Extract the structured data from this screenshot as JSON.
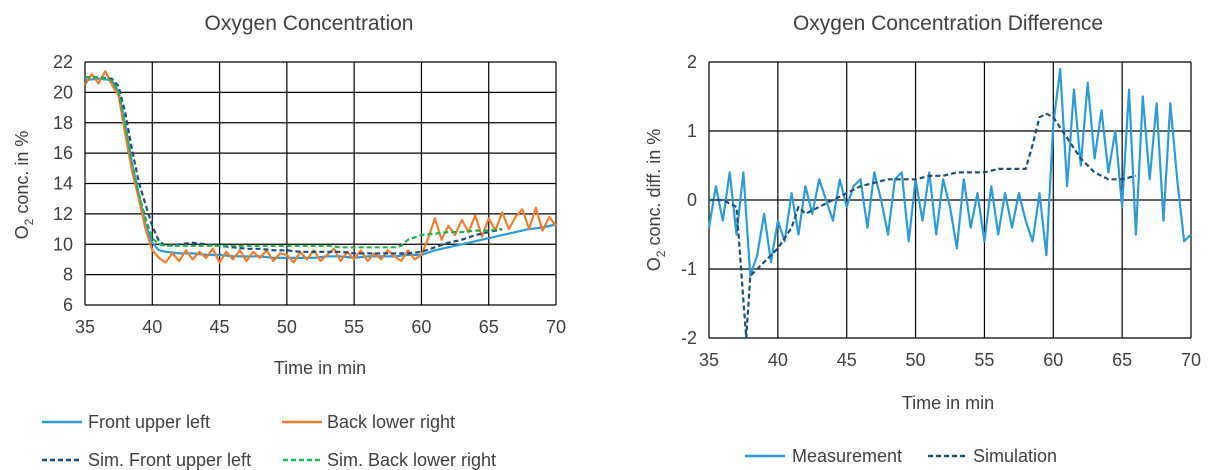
{
  "chart_data": [
    {
      "type": "line",
      "title": "Oxygen Concentration",
      "xlabel": "Time in min",
      "ylabel_main": "O",
      "ylabel_sub": "2",
      "ylabel_rest": " conc. in %",
      "xlim": [
        35,
        70
      ],
      "ylim": [
        6,
        22
      ],
      "xticks": [
        35,
        40,
        45,
        50,
        55,
        60,
        65,
        70
      ],
      "yticks": [
        6,
        8,
        10,
        12,
        14,
        16,
        18,
        20,
        22
      ],
      "grid": true,
      "legend_position": "bottom",
      "colors": {
        "front": "#2e9bd6",
        "back": "#ed7d31",
        "sim_front": "#1f4e79",
        "sim_back": "#22b14c"
      },
      "series": [
        {
          "name": "Front upper left",
          "color": "#2e9bd6",
          "dashed": false,
          "x": [
            35,
            36,
            37,
            37.5,
            38,
            38.5,
            39,
            39.5,
            40,
            40.5,
            41,
            42,
            43,
            44,
            45,
            46,
            47,
            48,
            49,
            50,
            51,
            52,
            53,
            54,
            55,
            56,
            57,
            58,
            59,
            60,
            61,
            62,
            63,
            64,
            65,
            66,
            67,
            68,
            69,
            70
          ],
          "values": [
            20.8,
            20.9,
            20.8,
            20.0,
            17.8,
            15.3,
            13.3,
            11.3,
            10.1,
            9.6,
            9.5,
            9.4,
            9.4,
            9.3,
            9.3,
            9.2,
            9.2,
            9.2,
            9.1,
            9.1,
            9.1,
            9.1,
            9.2,
            9.2,
            9.1,
            9.2,
            9.2,
            9.2,
            9.3,
            9.3,
            9.6,
            9.8,
            10.0,
            10.2,
            10.4,
            10.6,
            10.8,
            11.0,
            11.1,
            11.3
          ]
        },
        {
          "name": "Back lower right",
          "color": "#ed7d31",
          "dashed": false,
          "x": [
            35,
            35.5,
            36,
            36.5,
            37,
            37.5,
            38,
            38.5,
            39,
            39.5,
            40,
            40.5,
            41,
            41.5,
            42,
            42.5,
            43,
            43.5,
            44,
            44.5,
            45,
            45.5,
            46,
            46.5,
            47,
            47.5,
            48,
            48.5,
            49,
            49.5,
            50,
            50.5,
            51,
            51.5,
            52,
            52.5,
            53,
            53.5,
            54,
            54.5,
            55,
            55.5,
            56,
            56.5,
            57,
            57.5,
            58,
            58.5,
            59,
            59.5,
            60,
            60.5,
            61,
            61.5,
            62,
            62.5,
            63,
            63.5,
            64,
            64.5,
            65,
            65.5,
            66,
            66.5,
            67,
            67.5,
            68,
            68.5,
            69,
            69.5,
            70
          ],
          "values": [
            20.5,
            21.2,
            20.6,
            21.4,
            20.5,
            19.8,
            17.2,
            14.8,
            13.0,
            11.0,
            9.6,
            9.1,
            8.8,
            9.4,
            8.9,
            9.6,
            9.0,
            9.5,
            9.1,
            9.7,
            8.8,
            9.5,
            9.0,
            9.6,
            8.9,
            9.5,
            9.1,
            9.6,
            8.9,
            9.4,
            9.3,
            8.8,
            9.5,
            9.0,
            9.6,
            8.9,
            9.3,
            9.7,
            8.9,
            9.5,
            9.0,
            9.6,
            8.9,
            9.4,
            9.0,
            9.6,
            9.2,
            8.9,
            9.6,
            9.0,
            9.3,
            10.4,
            11.7,
            10.3,
            11.2,
            10.6,
            11.6,
            10.8,
            11.9,
            10.5,
            11.7,
            10.9,
            12.1,
            11.0,
            11.8,
            12.3,
            11.0,
            12.4,
            10.9,
            11.8,
            11.2
          ]
        },
        {
          "name": "Sim. Front upper left",
          "color": "#1f4e79",
          "dashed": true,
          "x": [
            35,
            36,
            37,
            37.5,
            38,
            38.5,
            39,
            39.5,
            40,
            40.5,
            41,
            42,
            43,
            44,
            45,
            46,
            47,
            48,
            49,
            50,
            51,
            52,
            53,
            54,
            55,
            56,
            57,
            58,
            59,
            60,
            61,
            62,
            63,
            64,
            65,
            66
          ],
          "values": [
            21.0,
            21.0,
            20.9,
            20.4,
            18.6,
            16.2,
            14.1,
            12.6,
            11.2,
            10.2,
            9.9,
            10.0,
            10.1,
            10.0,
            9.9,
            9.8,
            9.7,
            9.7,
            9.6,
            9.6,
            9.5,
            9.5,
            9.5,
            9.5,
            9.4,
            9.4,
            9.4,
            9.4,
            9.4,
            9.5,
            9.8,
            10.1,
            10.3,
            10.6,
            10.8,
            11.0
          ]
        },
        {
          "name": "Sim. Back lower right",
          "color": "#22b14c",
          "dashed": true,
          "x": [
            35,
            36,
            37,
            37.5,
            38,
            38.5,
            39,
            39.5,
            40,
            40.5,
            41,
            42,
            43,
            44,
            45,
            46,
            47,
            48,
            49,
            50,
            51,
            52,
            53,
            54,
            55,
            56,
            57,
            58,
            58.5,
            59,
            60,
            61,
            62,
            63,
            64,
            65,
            66
          ],
          "values": [
            21.0,
            21.0,
            20.8,
            20.0,
            17.8,
            15.3,
            13.3,
            11.7,
            10.4,
            10.0,
            9.9,
            9.9,
            9.9,
            9.9,
            9.9,
            9.9,
            9.9,
            9.9,
            9.9,
            9.9,
            9.9,
            9.9,
            9.9,
            9.8,
            9.8,
            9.8,
            9.8,
            9.8,
            9.9,
            10.3,
            10.6,
            10.7,
            10.8,
            10.8,
            10.9,
            10.9,
            11.0
          ]
        }
      ]
    },
    {
      "type": "line",
      "title": "Oxygen Concentration Difference",
      "xlabel": "Time in min",
      "ylabel_main": "O",
      "ylabel_sub": "2",
      "ylabel_rest": " conc. diff. in %",
      "xlim": [
        35,
        70
      ],
      "ylim": [
        -2,
        2
      ],
      "xticks": [
        35,
        40,
        45,
        50,
        55,
        60,
        65,
        70
      ],
      "yticks": [
        -2,
        -1,
        0,
        1,
        2
      ],
      "grid": true,
      "legend_position": "bottom",
      "colors": {
        "measurement": "#2e9bd6",
        "simulation": "#1f4e79"
      },
      "series": [
        {
          "name": "Measurement",
          "color": "#2e9bd6",
          "dashed": false,
          "x": [
            35,
            35.5,
            36,
            36.5,
            37,
            37.5,
            38,
            38.5,
            39,
            39.5,
            40,
            40.5,
            41,
            41.5,
            42,
            42.5,
            43,
            43.5,
            44,
            44.5,
            45,
            45.5,
            46,
            46.5,
            47,
            47.5,
            48,
            48.5,
            49,
            49.5,
            50,
            50.5,
            51,
            51.5,
            52,
            52.5,
            53,
            53.5,
            54,
            54.5,
            55,
            55.5,
            56,
            56.5,
            57,
            57.5,
            58,
            58.5,
            59,
            59.5,
            60,
            60.5,
            61,
            61.5,
            62,
            62.5,
            63,
            63.5,
            64,
            64.5,
            65,
            65.5,
            66,
            66.5,
            67,
            67.5,
            68,
            68.5,
            69,
            69.5,
            70
          ],
          "values": [
            -0.4,
            0.2,
            -0.3,
            0.4,
            -0.5,
            0.4,
            -1.1,
            -0.8,
            -0.2,
            -0.9,
            -0.3,
            -0.6,
            0.1,
            -0.5,
            0.2,
            -0.2,
            0.3,
            0.0,
            -0.3,
            0.3,
            -0.1,
            0.2,
            0.3,
            -0.4,
            0.4,
            0.0,
            -0.5,
            0.3,
            0.4,
            -0.6,
            0.3,
            -0.3,
            0.4,
            -0.5,
            0.3,
            -0.1,
            -0.7,
            0.3,
            -0.4,
            0.1,
            -0.6,
            0.2,
            -0.5,
            0.1,
            -0.4,
            0.1,
            -0.3,
            -0.6,
            0.1,
            -0.8,
            1.1,
            1.9,
            0.2,
            1.6,
            0.5,
            1.7,
            0.6,
            1.3,
            0.4,
            1.0,
            -0.1,
            1.6,
            -0.5,
            1.5,
            0.3,
            1.4,
            -0.3,
            1.4,
            0.3,
            -0.6,
            -0.5
          ]
        },
        {
          "name": "Simulation",
          "color": "#1f4e79",
          "dashed": true,
          "x": [
            35,
            36,
            37,
            37.4,
            37.7,
            38,
            38.5,
            39,
            40,
            41,
            41.5,
            42,
            43,
            44,
            45,
            46,
            47,
            48,
            49,
            50,
            51,
            52,
            53,
            54,
            55,
            56,
            57,
            58,
            58.5,
            59,
            59.5,
            60,
            61,
            62,
            63,
            64,
            65,
            66
          ],
          "values": [
            0,
            0,
            -0.1,
            -1.2,
            -2.0,
            -1.1,
            -1.0,
            -0.9,
            -0.7,
            -0.4,
            -0.1,
            -0.2,
            -0.1,
            0.0,
            0.1,
            0.2,
            0.25,
            0.3,
            0.3,
            0.3,
            0.35,
            0.35,
            0.4,
            0.4,
            0.4,
            0.45,
            0.45,
            0.45,
            0.8,
            1.2,
            1.25,
            1.2,
            0.9,
            0.6,
            0.4,
            0.3,
            0.3,
            0.35
          ]
        }
      ]
    }
  ]
}
